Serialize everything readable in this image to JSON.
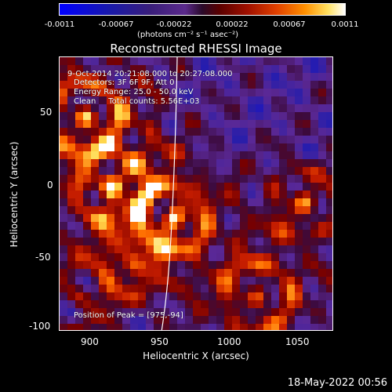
{
  "colorbar": {
    "ticks": [
      "-0.0011",
      "-0.00067",
      "-0.00022",
      "0.00022",
      "0.00067",
      "0.0011"
    ],
    "unit_label": "(photons cm⁻² s⁻¹ asec⁻²)"
  },
  "title": "Reconstructed RHESSI Image",
  "annotations": {
    "time": "9-Oct-2014 20:21:08.000 to 20:27:08.000",
    "detectors": "Detectors: 3F 6F 9F, Att 0",
    "energy": "Energy Range: 25.0 - 50.0 keV",
    "clean": "Clean     Total counts: 5.56E+03",
    "position": "Position of Peak = [975,-94]"
  },
  "axes": {
    "x_label": "Heliocentric X (arcsec)",
    "y_label": "Heliocentric Y (arcsec)",
    "x_ticks": [
      "900",
      "950",
      "1000",
      "1050"
    ],
    "y_ticks": [
      "50",
      "0",
      "-50",
      "-100"
    ]
  },
  "footer": {
    "date": "18-May-2022 00:56"
  }
}
